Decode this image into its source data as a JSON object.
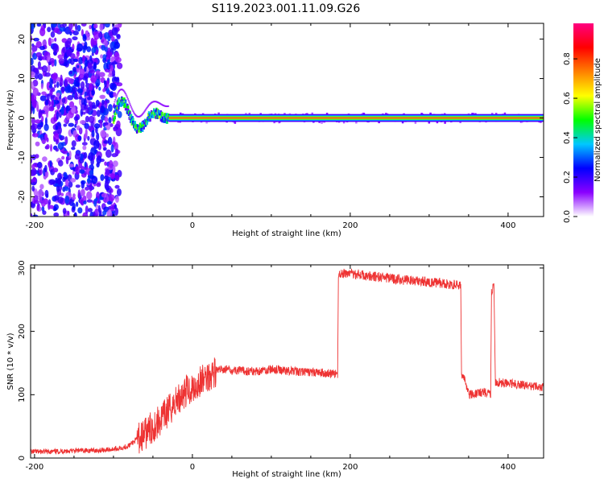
{
  "title": "S119.2023.001.11.09.G26",
  "chart_data": [
    {
      "type": "heatmap",
      "xlabel": "Height of straight line (km)",
      "ylabel": "Frequency (Hz)",
      "xlim": [
        -205,
        445
      ],
      "ylim": [
        -25,
        24
      ],
      "xticks": [
        -200,
        0,
        200,
        400
      ],
      "yticks": [
        -20,
        -10,
        0,
        10,
        20
      ],
      "colorbar": {
        "label": "Normalized spectral amplitude",
        "range": [
          0,
          0.98
        ],
        "ticks": [
          "0.0",
          "0.2",
          "0.4",
          "0.6",
          "0.8"
        ],
        "tick_values": [
          0,
          0.2,
          0.4,
          0.6,
          0.8
        ],
        "colors": [
          "#ffffff",
          "#8a00ff",
          "#0000ff",
          "#00c8ff",
          "#00ff00",
          "#ffff00",
          "#ff8000",
          "#ff0000",
          "#ff0080"
        ]
      },
      "features": {
        "dominant_frequency_hz": 0,
        "noise_region_km": [
          -205,
          -100
        ],
        "converging_region_km": [
          -100,
          -30
        ],
        "steady_line_km": [
          -30,
          445
        ]
      },
      "grid": false
    },
    {
      "type": "line",
      "xlabel": "Height of straight line (km)",
      "ylabel": "SNR (10 * v/v)",
      "xlim": [
        -205,
        445
      ],
      "ylim": [
        0,
        305
      ],
      "xticks": [
        -200,
        0,
        200,
        400
      ],
      "yticks": [
        0,
        100,
        200,
        300
      ],
      "color": "#ee3333",
      "series": [
        {
          "x": [
            -205,
            -180,
            -160,
            -140,
            -120,
            -100,
            -90,
            -80,
            -70,
            -60,
            -50,
            -40,
            -30,
            -20,
            -10,
            0,
            10,
            20,
            25,
            30,
            40,
            60,
            80,
            100,
            120,
            140,
            160,
            184,
            185,
            200,
            220,
            240,
            260,
            280,
            300,
            320,
            340,
            341,
            345,
            350,
            360,
            370,
            378,
            379,
            382,
            384,
            400,
            420,
            445
          ],
          "y": [
            10,
            10,
            11,
            12,
            12,
            14,
            16,
            20,
            30,
            38,
            50,
            60,
            75,
            90,
            105,
            110,
            120,
            130,
            135,
            138,
            140,
            138,
            137,
            140,
            138,
            136,
            135,
            132,
            290,
            292,
            288,
            285,
            282,
            280,
            278,
            275,
            272,
            130,
            125,
            100,
            102,
            104,
            100,
            260,
            275,
            120,
            118,
            115,
            112
          ]
        }
      ],
      "grid": false
    }
  ]
}
